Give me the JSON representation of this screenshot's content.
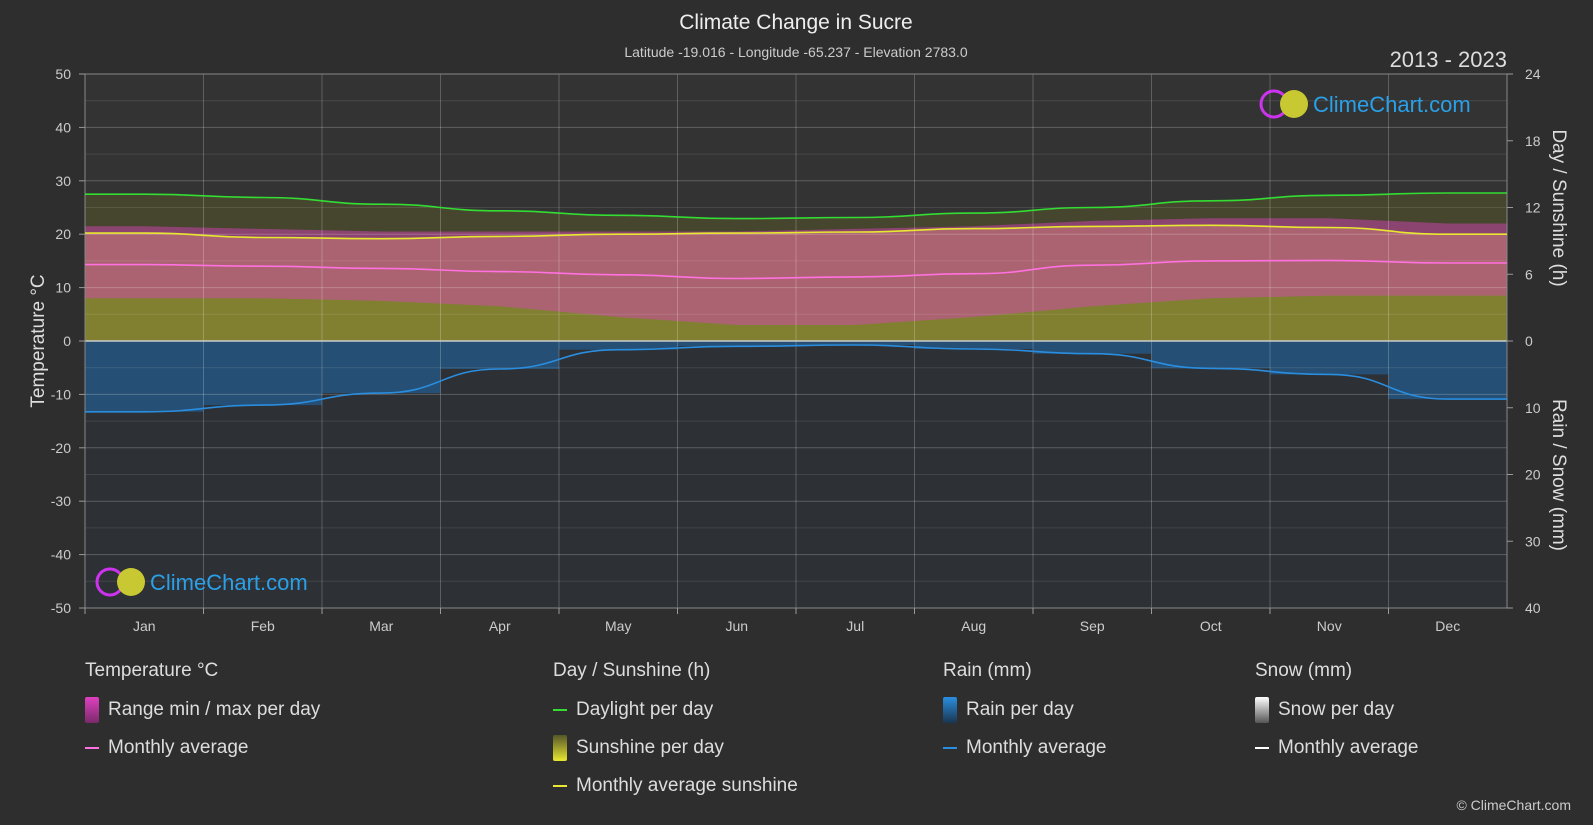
{
  "header": {
    "title": "Climate Change in Sucre",
    "subtitle": "Latitude -19.016 - Longitude -65.237 - Elevation 2783.0",
    "years": "2013 - 2023"
  },
  "brand": {
    "logo_text": "ClimeChart.com",
    "copyright": "© ClimeChart.com"
  },
  "colors": {
    "background": "#2e2e2e",
    "temp_range": "#e040c0",
    "temp_avg": "#ff70e0",
    "daylight": "#33dd33",
    "sunshine": "#c8c832",
    "sunshine_avg": "#e8e830",
    "rain": "#1e6eb4",
    "rain_avg": "#2a8ee0",
    "snow": "#cccccc",
    "snow_avg": "#ffffff"
  },
  "legend": {
    "temperature": {
      "heading": "Temperature °C",
      "range": "Range min / max per day",
      "avg": "Monthly average"
    },
    "sun": {
      "heading": "Day / Sunshine (h)",
      "daylight": "Daylight per day",
      "sunshine": "Sunshine per day",
      "avg": "Monthly average sunshine"
    },
    "rain": {
      "heading": "Rain (mm)",
      "per_day": "Rain per day",
      "avg": "Monthly average"
    },
    "snow": {
      "heading": "Snow (mm)",
      "per_day": "Snow per day",
      "avg": "Monthly average"
    }
  },
  "chart_data": {
    "type": "area",
    "title": "Climate Change in Sucre",
    "categories": [
      "Jan",
      "Feb",
      "Mar",
      "Apr",
      "May",
      "Jun",
      "Jul",
      "Aug",
      "Sep",
      "Oct",
      "Nov",
      "Dec"
    ],
    "axes": {
      "left": {
        "title": "Temperature °C",
        "range": [
          -50,
          50
        ],
        "ticks": [
          50,
          40,
          30,
          20,
          10,
          0,
          -10,
          -20,
          -30,
          -40,
          -50
        ]
      },
      "right_top": {
        "title": "Day / Sunshine (h)",
        "range": [
          0,
          24
        ],
        "ticks": [
          24,
          18,
          12,
          6,
          0
        ]
      },
      "right_bottom": {
        "title": "Rain / Snow (mm)",
        "range": [
          0,
          40
        ],
        "ticks": [
          0,
          10,
          20,
          30,
          40
        ]
      }
    },
    "grid": true,
    "series": [
      {
        "name": "Daylight per day",
        "unit": "h",
        "values": [
          13.2,
          12.9,
          12.3,
          11.7,
          11.3,
          11.0,
          11.1,
          11.5,
          12.0,
          12.6,
          13.1,
          13.3
        ]
      },
      {
        "name": "Monthly average sunshine",
        "unit": "h",
        "values": [
          9.7,
          9.3,
          9.2,
          9.4,
          9.6,
          9.7,
          9.8,
          10.1,
          10.3,
          10.4,
          10.2,
          9.6
        ]
      },
      {
        "name": "Temperature monthly average",
        "unit": "°C",
        "values": [
          14.3,
          14.0,
          13.6,
          13.0,
          12.4,
          11.7,
          12.0,
          12.6,
          14.2,
          15.0,
          15.1,
          14.6
        ]
      },
      {
        "name": "Temperature range max",
        "unit": "°C",
        "values": [
          21.5,
          21.0,
          20.5,
          20.5,
          20.5,
          20.5,
          21.0,
          21.5,
          22.5,
          23.0,
          23.0,
          22.0
        ]
      },
      {
        "name": "Temperature range min",
        "unit": "°C",
        "values": [
          8.0,
          8.0,
          7.5,
          6.5,
          4.5,
          3.0,
          3.0,
          4.5,
          6.5,
          8.0,
          8.5,
          8.5
        ]
      },
      {
        "name": "Rain monthly average",
        "unit": "mm",
        "values": [
          10.6,
          9.6,
          7.8,
          4.2,
          1.3,
          0.8,
          0.6,
          1.2,
          1.9,
          4.1,
          5.0,
          8.7
        ]
      }
    ]
  }
}
